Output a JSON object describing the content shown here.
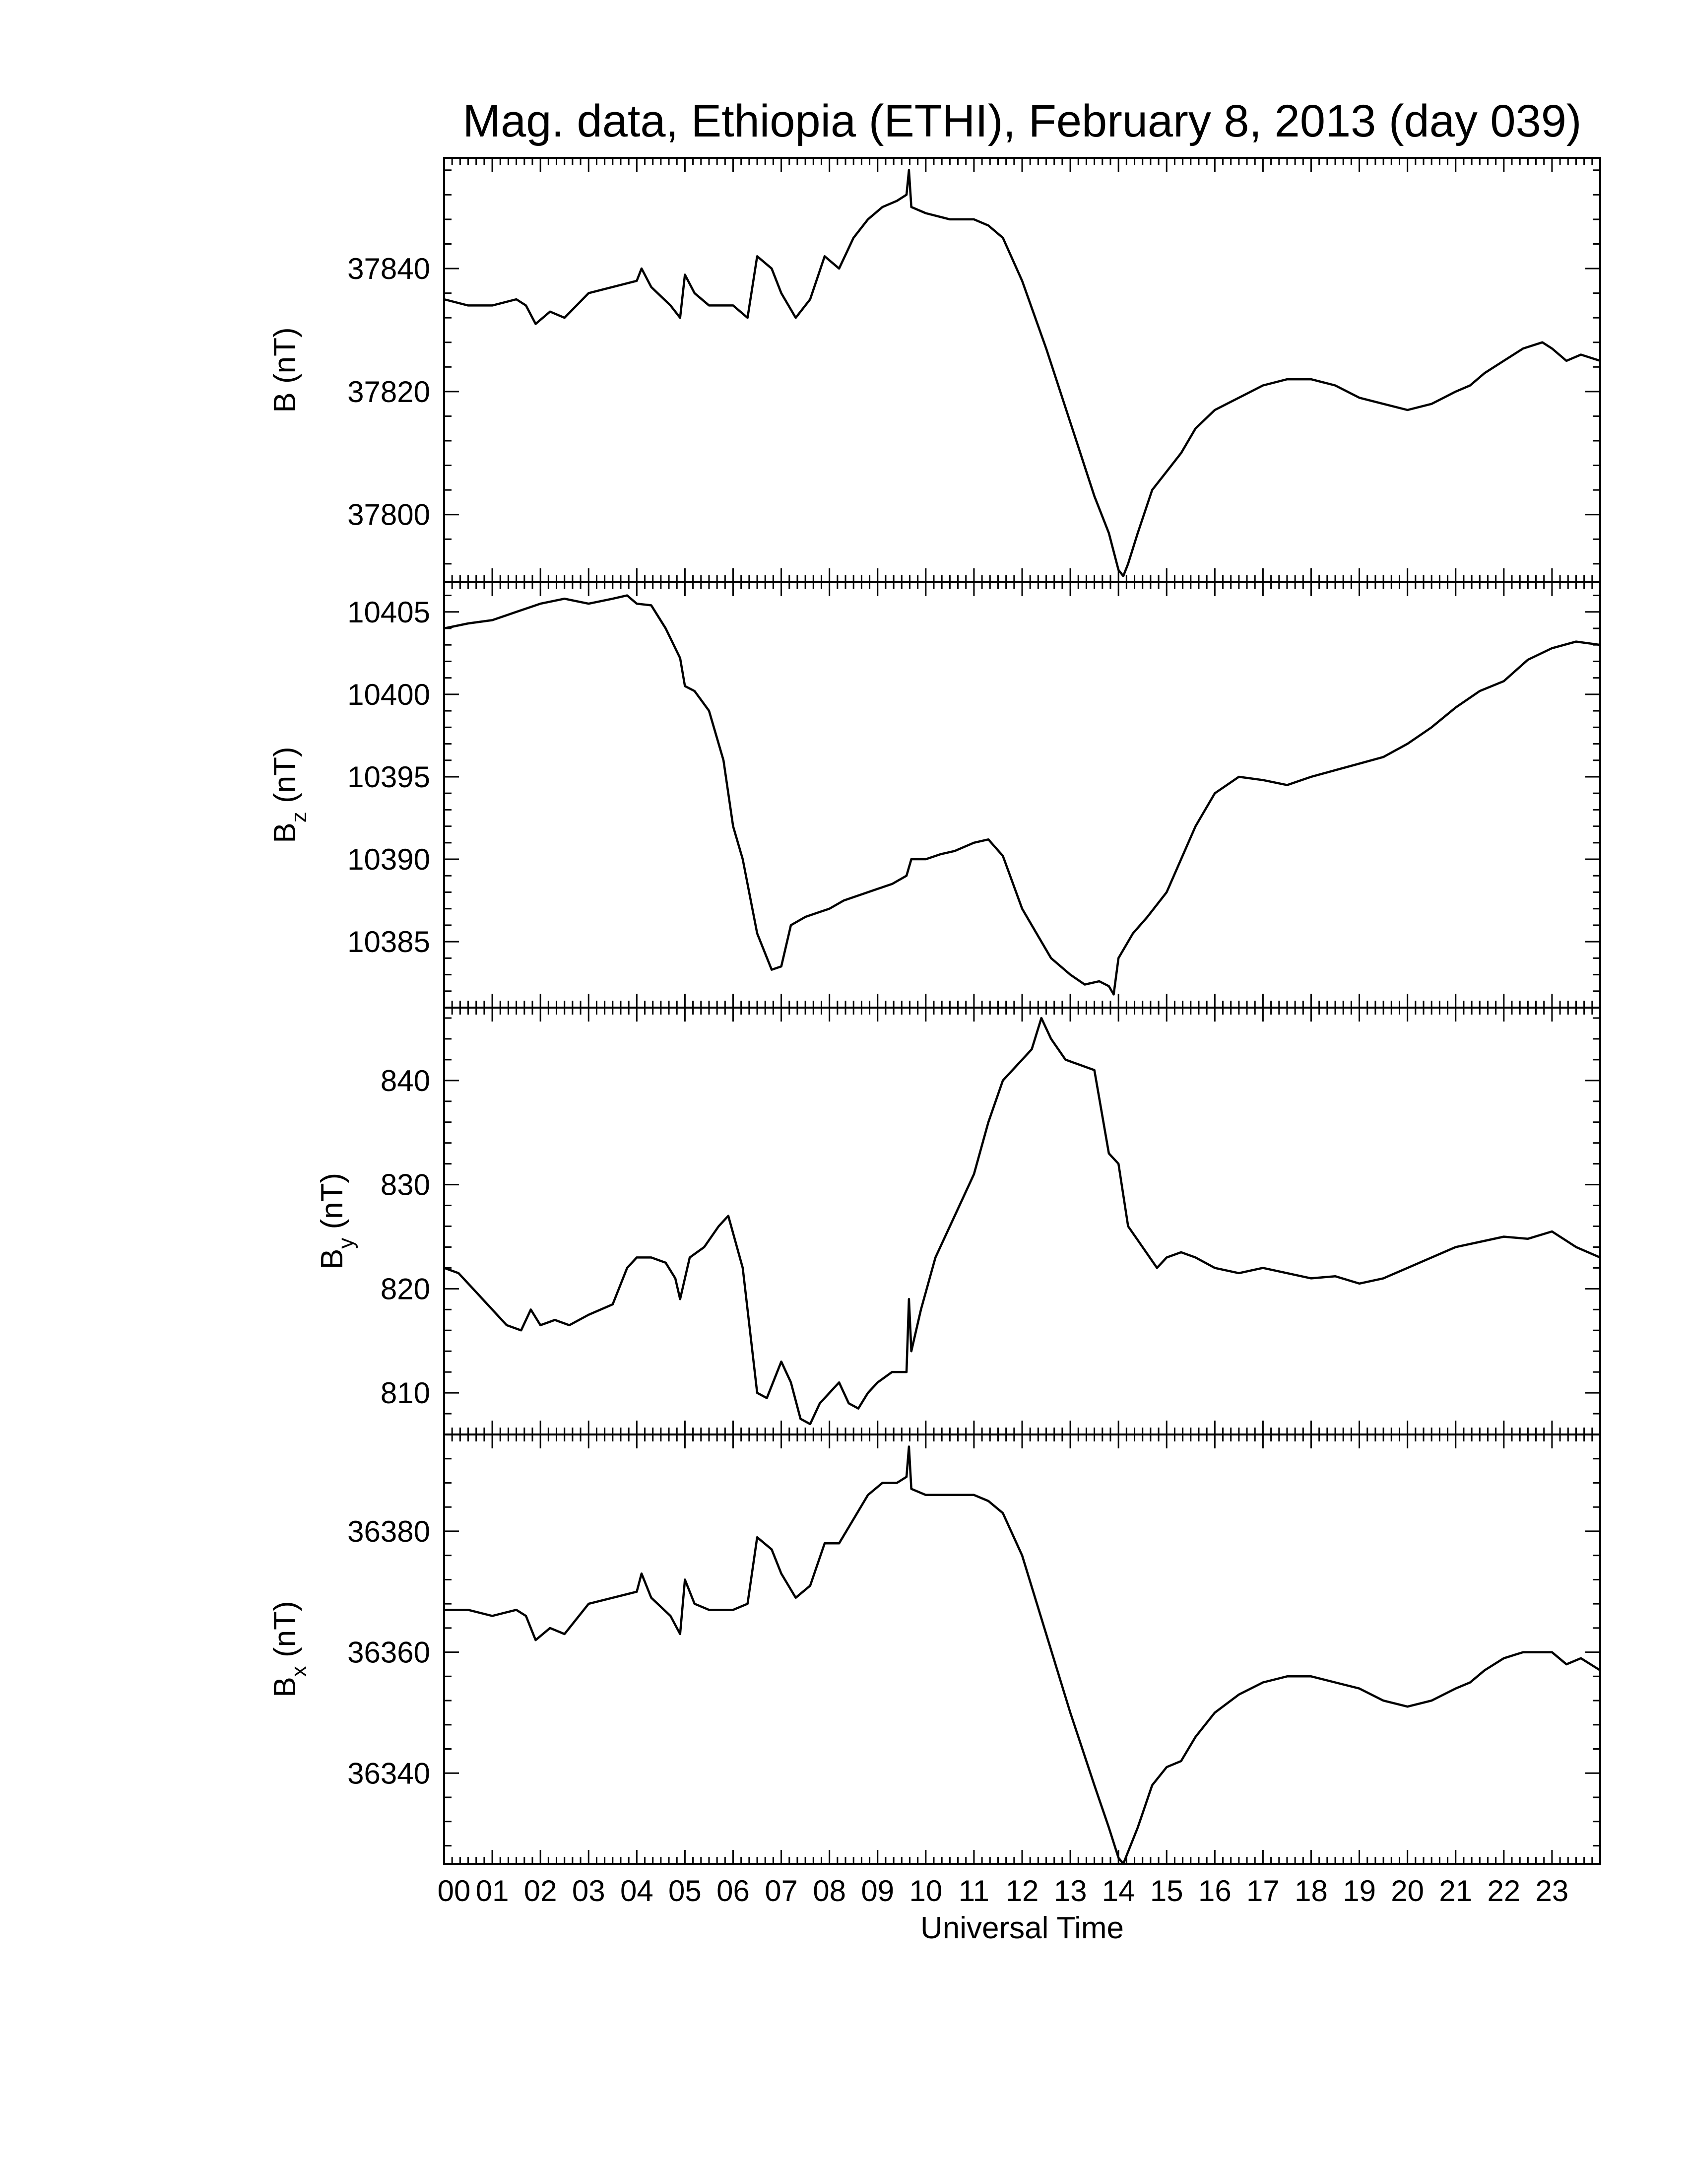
{
  "chart_data": {
    "type": "line",
    "title": "Mag. data, Ethiopia (ETHI), February 8, 2013 (day 039)",
    "xlabel": "Universal Time",
    "x_tick_labels": [
      "00",
      "01",
      "02",
      "03",
      "04",
      "05",
      "06",
      "07",
      "08",
      "09",
      "10",
      "11",
      "12",
      "13",
      "14",
      "15",
      "16",
      "17",
      "18",
      "19",
      "20",
      "21",
      "22",
      "23"
    ],
    "xlim": [
      0,
      24
    ],
    "panels": [
      {
        "id": "B",
        "ylabel": "B (nT)",
        "ylabel_main": "B",
        "ylabel_sub": "",
        "ylabel_unit": " (nT)",
        "ylim": [
          37789,
          37858
        ],
        "yticks": [
          37800,
          37820,
          37840
        ],
        "series": [
          {
            "x": [
              0,
              0.5,
              1,
              1.5,
              1.7,
              1.9,
              2.2,
              2.5,
              3,
              3.5,
              4,
              4.1,
              4.3,
              4.7,
              4.9,
              5.0,
              5.2,
              5.5,
              6,
              6.3,
              6.5,
              6.8,
              7,
              7.3,
              7.6,
              7.9,
              8.2,
              8.5,
              8.8,
              9.1,
              9.4,
              9.6,
              9.65,
              9.7,
              10,
              10.5,
              11,
              11.3,
              11.6,
              12,
              12.5,
              13,
              13.5,
              13.8,
              14.0,
              14.1,
              14.2,
              14.4,
              14.7,
              15,
              15.3,
              15.6,
              16,
              16.5,
              17,
              17.5,
              18,
              18.5,
              19,
              19.5,
              20,
              20.5,
              21,
              21.3,
              21.6,
              22,
              22.4,
              22.8,
              23,
              23.3,
              23.6,
              24
            ],
            "y": [
              37835,
              37834,
              37834,
              37835,
              37834,
              37831,
              37833,
              37832,
              37836,
              37837,
              37838,
              37840,
              37837,
              37834,
              37832,
              37839,
              37836,
              37834,
              37834,
              37832,
              37842,
              37840,
              37836,
              37832,
              37835,
              37842,
              37840,
              37845,
              37848,
              37850,
              37851,
              37852,
              37856,
              37850,
              37849,
              37848,
              37848,
              37847,
              37845,
              37838,
              37827,
              37815,
              37803,
              37797,
              37791,
              37790,
              37792,
              37797,
              37804,
              37807,
              37810,
              37814,
              37817,
              37819,
              37821,
              37822,
              37822,
              37821,
              37819,
              37818,
              37817,
              37818,
              37820,
              37821,
              37823,
              37825,
              37827,
              37828,
              37827,
              37825,
              37826,
              37825
            ]
          }
        ]
      },
      {
        "id": "Bz",
        "ylabel": "Bz (nT)",
        "ylabel_main": "B",
        "ylabel_sub": "z",
        "ylabel_unit": " (nT)",
        "ylim": [
          10381,
          10406.8
        ],
        "yticks": [
          10385,
          10390,
          10395,
          10400,
          10405
        ],
        "series": [
          {
            "x": [
              0,
              0.5,
              1,
              1.5,
              2,
              2.5,
              3,
              3.5,
              3.8,
              4,
              4.3,
              4.6,
              4.9,
              5,
              5.2,
              5.5,
              5.8,
              6.0,
              6.2,
              6.5,
              6.8,
              7.0,
              7.2,
              7.5,
              7.8,
              8,
              8.3,
              8.6,
              9,
              9.3,
              9.6,
              9.7,
              10,
              10.3,
              10.6,
              11,
              11.3,
              11.6,
              12,
              12.3,
              12.6,
              13,
              13.3,
              13.6,
              13.8,
              13.9,
              14,
              14.3,
              14.6,
              15,
              15.3,
              15.6,
              16,
              16.5,
              17,
              17.5,
              18,
              18.5,
              19,
              19.5,
              20,
              20.5,
              21,
              21.5,
              22,
              22.5,
              23,
              23.5,
              24
            ],
            "y": [
              10404,
              10404.3,
              10404.5,
              10405,
              10405.5,
              10405.8,
              10405.5,
              10405.8,
              10406,
              10405.5,
              10405.4,
              10404,
              10402.2,
              10400.5,
              10400.2,
              10399,
              10396,
              10392,
              10390,
              10385.5,
              10383.3,
              10383.5,
              10386,
              10386.5,
              10386.8,
              10387,
              10387.5,
              10387.8,
              10388.2,
              10388.5,
              10389,
              10390,
              10390,
              10390.3,
              10390.5,
              10391,
              10391.2,
              10390.2,
              10387,
              10385.5,
              10384,
              10383,
              10382.4,
              10382.6,
              10382.3,
              10381.8,
              10384,
              10385.5,
              10386.5,
              10388,
              10390,
              10392,
              10394,
              10395,
              10394.8,
              10394.5,
              10395,
              10395.4,
              10395.8,
              10396.2,
              10397,
              10398,
              10399.2,
              10400.2,
              10400.8,
              10402.1,
              10402.8,
              10403.2,
              10403
            ]
          }
        ]
      },
      {
        "id": "By",
        "ylabel": "By (nT)",
        "ylabel_main": "B",
        "ylabel_sub": "y",
        "ylabel_unit": " (nT)",
        "ylim": [
          806,
          847
        ],
        "yticks": [
          810,
          820,
          830,
          840
        ],
        "series": [
          {
            "x": [
              0,
              0.3,
              0.6,
              1,
              1.3,
              1.6,
              1.8,
              2.0,
              2.3,
              2.6,
              3,
              3.5,
              3.8,
              4,
              4.3,
              4.6,
              4.8,
              4.9,
              5.1,
              5.4,
              5.7,
              5.9,
              6.2,
              6.5,
              6.7,
              7.0,
              7.2,
              7.4,
              7.6,
              7.8,
              8.0,
              8.2,
              8.4,
              8.6,
              8.8,
              9,
              9.3,
              9.6,
              9.65,
              9.7,
              9.9,
              10.2,
              10.5,
              10.8,
              11,
              11.3,
              11.6,
              11.9,
              12.2,
              12.4,
              12.6,
              12.9,
              13.2,
              13.5,
              13.8,
              14.0,
              14.2,
              14.5,
              14.8,
              15,
              15.3,
              15.6,
              16,
              16.5,
              17,
              17.5,
              18,
              18.5,
              19,
              19.5,
              20,
              20.5,
              21,
              21.5,
              22,
              22.5,
              23,
              23.5,
              24
            ],
            "y": [
              822,
              821.5,
              820,
              818,
              816.5,
              816,
              818,
              816.5,
              817,
              816.5,
              817.5,
              818.5,
              822,
              823,
              823,
              822.5,
              821,
              819,
              823,
              824,
              826,
              827,
              822,
              810,
              809.5,
              813,
              811,
              807.5,
              807,
              809,
              810,
              811,
              809,
              808.5,
              810,
              811,
              812,
              812,
              819,
              814,
              818,
              823,
              826,
              829,
              831,
              836,
              840,
              841.5,
              843,
              846,
              844,
              842,
              841.5,
              841,
              833,
              832,
              826,
              824,
              822,
              823,
              823.5,
              823,
              822,
              821.5,
              822,
              821.5,
              821,
              821.2,
              820.5,
              821,
              822,
              823,
              824,
              824.5,
              825,
              824.8,
              825.5,
              824,
              823
            ]
          }
        ]
      },
      {
        "id": "Bx",
        "ylabel": "Bx (nT)",
        "ylabel_main": "B",
        "ylabel_sub": "x",
        "ylabel_unit": " (nT)",
        "ylim": [
          36325,
          36396
        ],
        "yticks": [
          36340,
          36360,
          36380
        ],
        "series": [
          {
            "x": [
              0,
              0.5,
              1,
              1.5,
              1.7,
              1.9,
              2.2,
              2.5,
              3,
              3.5,
              4,
              4.1,
              4.3,
              4.7,
              4.9,
              5.0,
              5.2,
              5.5,
              6,
              6.3,
              6.5,
              6.8,
              7,
              7.3,
              7.6,
              7.9,
              8.2,
              8.5,
              8.8,
              9.1,
              9.4,
              9.6,
              9.65,
              9.7,
              10,
              10.5,
              11,
              11.3,
              11.6,
              12,
              12.5,
              13,
              13.5,
              13.8,
              14.0,
              14.1,
              14.2,
              14.4,
              14.7,
              15,
              15.3,
              15.6,
              16,
              16.5,
              17,
              17.5,
              18,
              18.5,
              19,
              19.5,
              20,
              20.5,
              21,
              21.3,
              21.6,
              22,
              22.4,
              22.8,
              23,
              23.3,
              23.6,
              24
            ],
            "y": [
              36367,
              36367,
              36366,
              36367,
              36366,
              36362,
              36364,
              36363,
              36368,
              36369,
              36370,
              36373,
              36369,
              36366,
              36363,
              36372,
              36368,
              36367,
              36367,
              36368,
              36379,
              36377,
              36373,
              36369,
              36371,
              36378,
              36378,
              36382,
              36386,
              36388,
              36388,
              36389,
              36394,
              36387,
              36386,
              36386,
              36386,
              36385,
              36383,
              36376,
              36363,
              36350,
              36338,
              36331,
              36326,
              36325,
              36327,
              36331,
              36338,
              36341,
              36342,
              36346,
              36350,
              36353,
              36355,
              36356,
              36356,
              36355,
              36354,
              36352,
              36351,
              36352,
              36354,
              36355,
              36357,
              36359,
              36360,
              36360,
              36360,
              36358,
              36359,
              36357
            ]
          }
        ]
      }
    ]
  }
}
